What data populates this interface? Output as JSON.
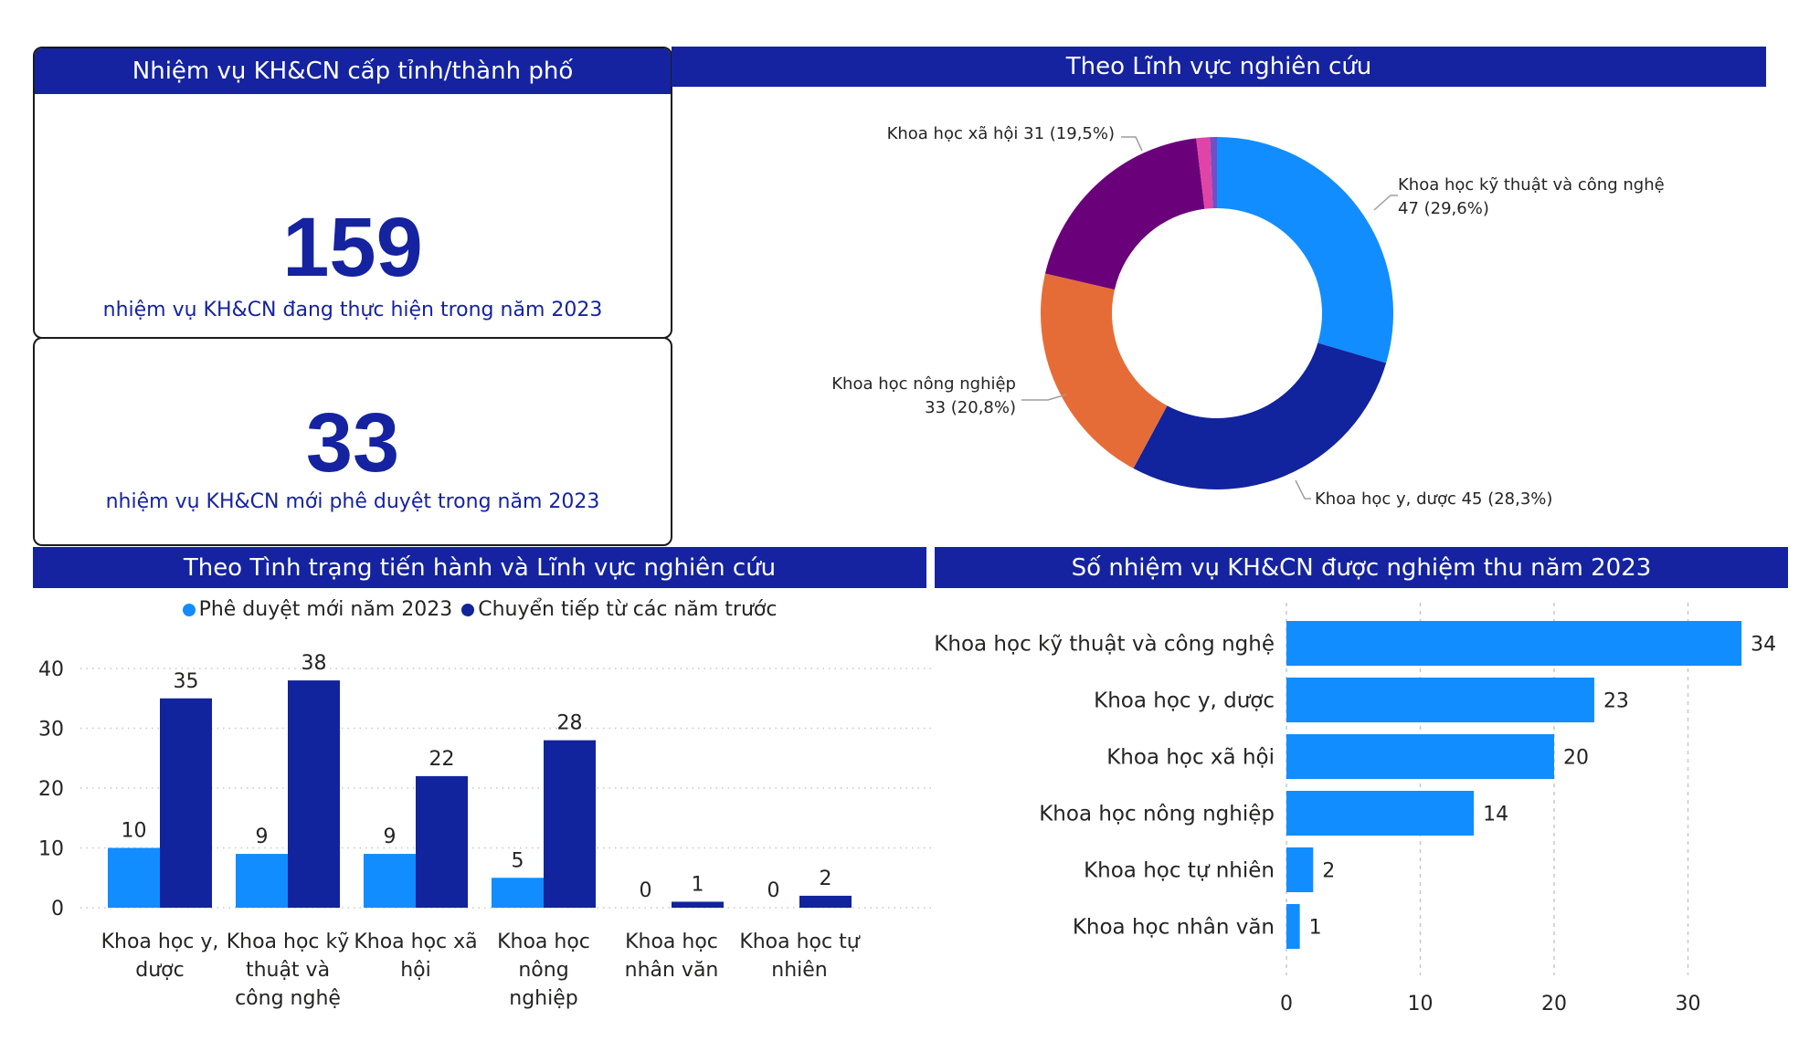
{
  "kpi_panel": {
    "title": "Nhiệm vụ KH&CN cấp tỉnh/thành phố",
    "cards": [
      {
        "value": "159",
        "caption": "nhiệm vụ KH&CN đang thực hiện trong năm 2023"
      },
      {
        "value": "33",
        "caption": "nhiệm vụ KH&CN mới phê duyệt trong năm 2023"
      }
    ]
  },
  "colors": {
    "header_bg": "#1523A0",
    "header_text": "#FFFFFF",
    "kpi_text": "#1523A0",
    "light_blue": "#118DFF",
    "dark_blue": "#12239E",
    "orange": "#E66C37",
    "purple": "#6B007B",
    "pink": "#E044A7",
    "violet": "#744EC2"
  },
  "chart_data": [
    {
      "type": "pie",
      "variant": "donut",
      "title": "Theo Lĩnh vực nghiên cứu",
      "slices": [
        {
          "label": "Khoa học kỹ thuật và công nghệ",
          "value": 47,
          "percent": "29,6%",
          "color": "#118DFF",
          "data_label_line1": "Khoa học kỹ thuật và công nghệ",
          "data_label_line2": "47 (29,6%)"
        },
        {
          "label": "Khoa học y, dược",
          "value": 45,
          "percent": "28,3%",
          "color": "#12239E",
          "data_label_line1": "Khoa học y, dược 45 (28,3%)",
          "data_label_line2": ""
        },
        {
          "label": "Khoa học nông nghiệp",
          "value": 33,
          "percent": "20,8%",
          "color": "#E66C37",
          "data_label_line1": "Khoa học nông nghiệp",
          "data_label_line2": "33 (20,8%)"
        },
        {
          "label": "Khoa học xã hội",
          "value": 31,
          "percent": "19,5%",
          "color": "#6B007B",
          "data_label_line1": "Khoa học xã hội 31 (19,5%)",
          "data_label_line2": ""
        },
        {
          "label": "Khoa học tự nhiên",
          "value": 2,
          "percent": "1,3%",
          "color": "#E044A7",
          "data_label_line1": "",
          "data_label_line2": ""
        },
        {
          "label": "Khoa học nhân văn",
          "value": 1,
          "percent": "0,6%",
          "color": "#744EC2",
          "data_label_line1": "",
          "data_label_line2": ""
        }
      ]
    },
    {
      "type": "bar",
      "orientation": "vertical",
      "grouped": true,
      "title": "Theo Tình trạng tiến hành và Lĩnh vực nghiên cứu",
      "categories": [
        [
          "Khoa học y,",
          "dược"
        ],
        [
          "Khoa học kỹ",
          "thuật và",
          "công nghệ"
        ],
        [
          "Khoa học xã",
          "hội"
        ],
        [
          "Khoa học",
          "nông",
          "nghiệp"
        ],
        [
          "Khoa học",
          "nhân văn"
        ],
        [
          "Khoa học tự",
          "nhiên"
        ]
      ],
      "series": [
        {
          "name": "Phê duyệt mới năm 2023",
          "color": "#118DFF",
          "values": [
            10,
            9,
            9,
            5,
            0,
            0
          ]
        },
        {
          "name": "Chuyển tiếp từ các năm trước",
          "color": "#12239E",
          "values": [
            35,
            38,
            22,
            28,
            1,
            2
          ]
        }
      ],
      "yticks": [
        0,
        10,
        20,
        30,
        40
      ],
      "ylim": [
        0,
        40
      ],
      "grid": true,
      "legend": "top-center",
      "xlabel": "",
      "ylabel": ""
    },
    {
      "type": "bar",
      "orientation": "horizontal",
      "title": "Số nhiệm vụ KH&CN được nghiệm thu năm 2023",
      "categories": [
        "Khoa học kỹ thuật và công nghệ",
        "Khoa học y, dược",
        "Khoa học xã hội",
        "Khoa học nông nghiệp",
        "Khoa học tự nhiên",
        "Khoa học nhân văn"
      ],
      "values": [
        34,
        23,
        20,
        14,
        2,
        1
      ],
      "color": "#118DFF",
      "xticks": [
        0,
        10,
        20,
        30
      ],
      "xlim": [
        0,
        35
      ],
      "grid": true,
      "xlabel": "",
      "ylabel": ""
    }
  ]
}
